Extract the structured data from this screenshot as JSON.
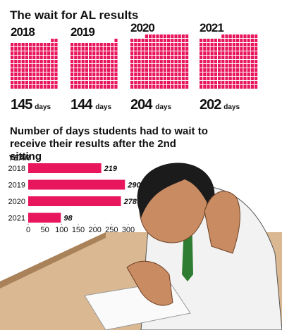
{
  "chart_data": [
    {
      "type": "waffle",
      "title": "The wait for AL results",
      "categories": [
        "2018",
        "2019",
        "2020",
        "2021"
      ],
      "values": [
        145,
        144,
        204,
        202
      ],
      "unit_label": "days",
      "color": "#e8175d"
    },
    {
      "type": "bar",
      "orientation": "horizontal",
      "title": "Number of days students had to wait to receive their results after the 2nd sitting",
      "y_label": "YEAR",
      "categories": [
        "2018",
        "2019",
        "2020",
        "2021"
      ],
      "values": [
        219,
        290,
        278,
        98
      ],
      "xlim": [
        0,
        300
      ],
      "xticks": [
        0,
        50,
        100,
        150,
        200,
        250,
        300
      ],
      "color": "#e8175d"
    }
  ]
}
